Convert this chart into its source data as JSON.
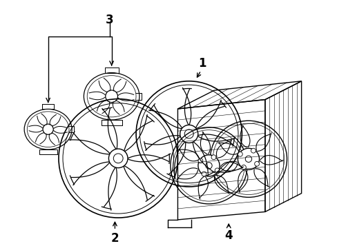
{
  "bg_color": "#ffffff",
  "line_color": "#000000",
  "lw": 1.0,
  "fig_width": 4.89,
  "fig_height": 3.6,
  "dpi": 100
}
